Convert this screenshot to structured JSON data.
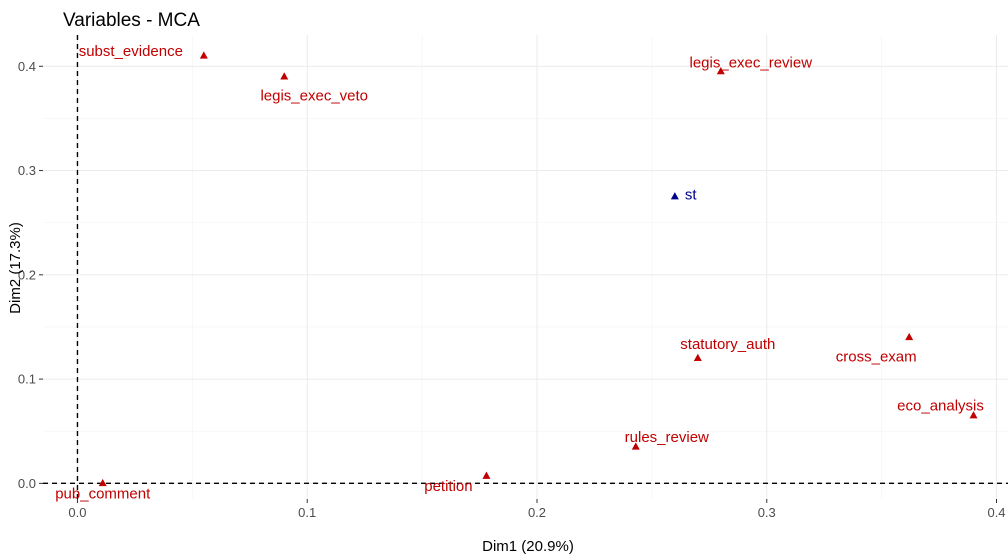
{
  "chart_data": {
    "type": "scatter",
    "title": "Variables - MCA",
    "xlabel": "Dim1 (20.9%)",
    "ylabel": "Dim2 (17.3%)",
    "xlim": [
      -0.015,
      0.405
    ],
    "ylim": [
      -0.015,
      0.43
    ],
    "x_ticks": [
      0.0,
      0.1,
      0.2,
      0.3,
      0.4
    ],
    "x_tick_labels": [
      "0.0",
      "0.1",
      "0.2",
      "0.3",
      "0.4"
    ],
    "y_ticks": [
      0.0,
      0.1,
      0.2,
      0.3,
      0.4
    ],
    "y_tick_labels": [
      "0.0",
      "0.1",
      "0.2",
      "0.3",
      "0.4"
    ],
    "grid": true,
    "reference_lines": {
      "x": 0,
      "y": 0
    },
    "colors": {
      "active": "#c00000",
      "supplementary": "#00008b",
      "reference": "#000000"
    },
    "points": [
      {
        "label": "subst_evidence",
        "x": 0.055,
        "y": 0.41,
        "group": "active"
      },
      {
        "label": "legis_exec_veto",
        "x": 0.09,
        "y": 0.39,
        "group": "active"
      },
      {
        "label": "legis_exec_review",
        "x": 0.28,
        "y": 0.395,
        "group": "active"
      },
      {
        "label": "st",
        "x": 0.26,
        "y": 0.275,
        "group": "supplementary"
      },
      {
        "label": "statutory_auth",
        "x": 0.27,
        "y": 0.12,
        "group": "active"
      },
      {
        "label": "cross_exam",
        "x": 0.362,
        "y": 0.14,
        "group": "active"
      },
      {
        "label": "eco_analysis",
        "x": 0.39,
        "y": 0.065,
        "group": "active"
      },
      {
        "label": "rules_review",
        "x": 0.243,
        "y": 0.035,
        "group": "active"
      },
      {
        "label": "petition",
        "x": 0.178,
        "y": 0.007,
        "group": "active"
      },
      {
        "label": "pub_comment",
        "x": 0.011,
        "y": 0.0,
        "group": "active"
      }
    ]
  }
}
